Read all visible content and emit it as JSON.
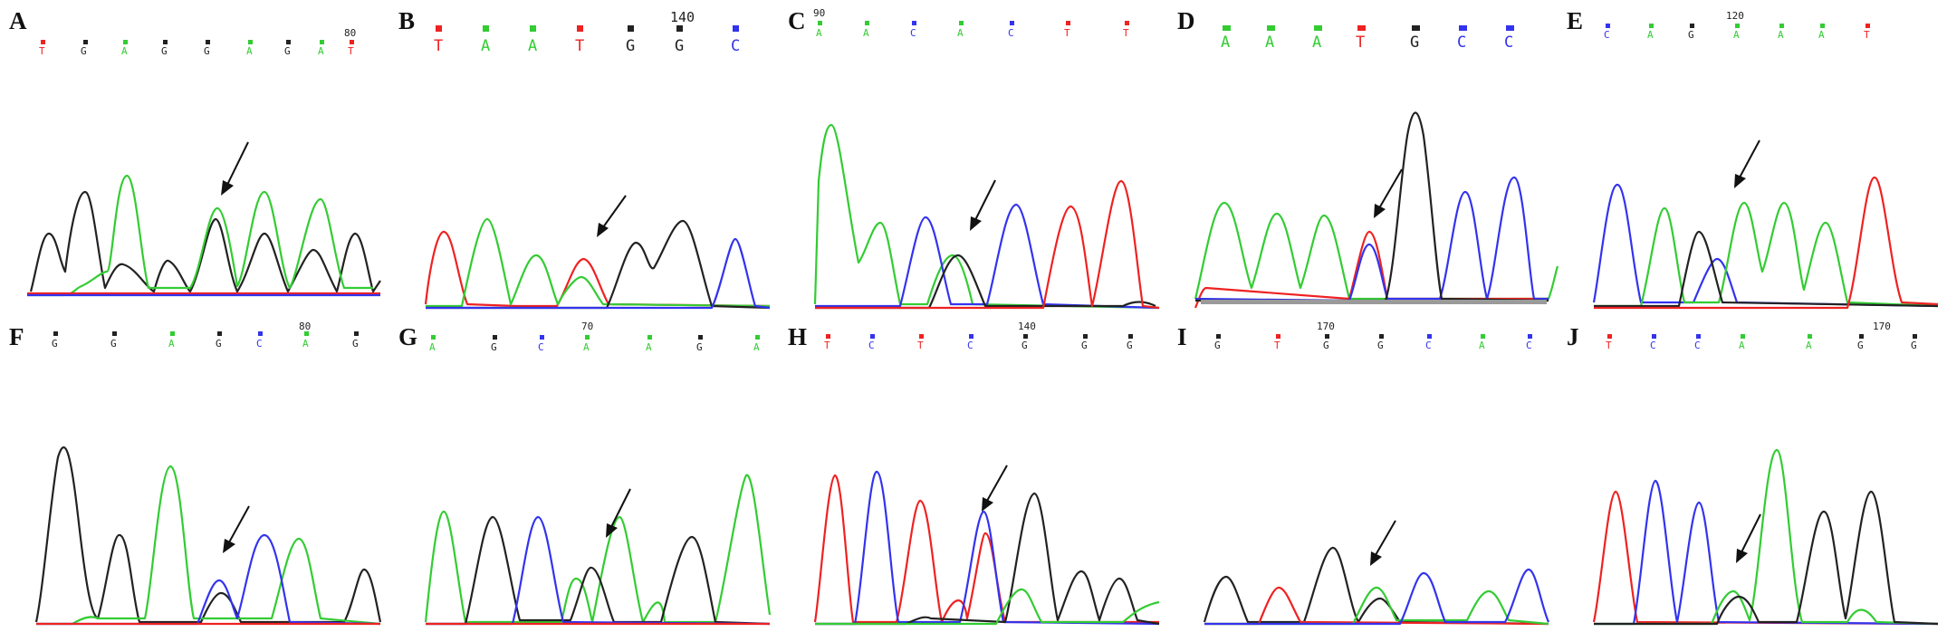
{
  "colors": {
    "A": "#33cc33",
    "C": "#3333ee",
    "G": "#222222",
    "T": "#ee2222",
    "arrow": "#111111"
  },
  "panels": [
    {
      "letter": "A",
      "bases": [
        "T",
        "G",
        "A",
        "G",
        "G",
        "A",
        "G",
        "A",
        "T"
      ],
      "pos_label": "80"
    },
    {
      "letter": "B",
      "bases": [
        "T",
        "A",
        "A",
        "T",
        "G",
        "G",
        "C"
      ],
      "pos_label": "140"
    },
    {
      "letter": "C",
      "bases": [
        "A",
        "A",
        "C",
        "A",
        "C",
        "T",
        "T"
      ],
      "pos_label": "90"
    },
    {
      "letter": "D",
      "bases": [
        "A",
        "A",
        "A",
        "T",
        "G",
        "C",
        "C"
      ],
      "pos_label": ""
    },
    {
      "letter": "E",
      "bases": [
        "C",
        "A",
        "G",
        "A",
        "A",
        "A",
        "T"
      ],
      "pos_label": "120"
    },
    {
      "letter": "F",
      "bases": [
        "G",
        "G",
        "A",
        "G",
        "C",
        "A",
        "G"
      ],
      "pos_label": "80"
    },
    {
      "letter": "G",
      "bases": [
        "A",
        "G",
        "C",
        "A",
        "A",
        "G",
        "A"
      ],
      "pos_label": "70"
    },
    {
      "letter": "H",
      "bases": [
        "T",
        "C",
        "T",
        "C",
        "G",
        "G",
        "G"
      ],
      "pos_label": "140"
    },
    {
      "letter": "I",
      "bases": [
        "G",
        "T",
        "G",
        "G",
        "C",
        "A",
        "C"
      ],
      "pos_label": "170"
    },
    {
      "letter": "J",
      "bases": [
        "T",
        "C",
        "C",
        "A",
        "A",
        "G",
        "G"
      ],
      "pos_label": "170"
    }
  ]
}
